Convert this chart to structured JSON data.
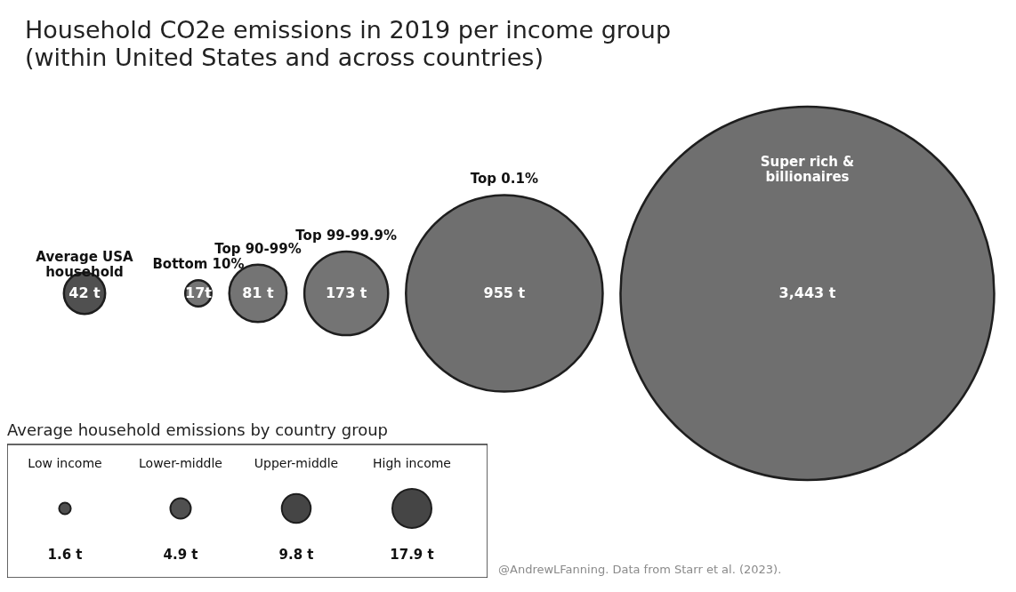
{
  "chart_data": [
    {
      "type": "other",
      "title": "Household CO2e emissions in 2019 per income group",
      "subtitle": "(within United States and across countries)",
      "categories": [
        "Average USA household",
        "Bottom 10%",
        "Top 90-99%",
        "Top 99-99.9%",
        "Top 0.1%",
        "Super rich & billionaires"
      ],
      "values": [
        42,
        17,
        81,
        173,
        955,
        3443
      ],
      "value_labels": [
        "42 t",
        "17t",
        "81 t",
        "173 t",
        "955 t",
        "3,443 t"
      ],
      "colors": [
        "#4a4a4a",
        "#707070",
        "#707070",
        "#707070",
        "#6a6a6a",
        "#6a6a6a"
      ],
      "annotations": [
        "@AndrewLFanning. Data from Starr et al. (2023)."
      ]
    },
    {
      "type": "other",
      "title": "Average household emissions by country group",
      "categories": [
        "Low income",
        "Lower-middle",
        "Upper-middle",
        "High income"
      ],
      "values": [
        1.6,
        4.9,
        9.8,
        17.9
      ],
      "value_labels": [
        "1.6 t",
        "4.9 t",
        "9.8 t",
        "17.9 t"
      ],
      "colors": [
        "#505050",
        "#505050",
        "#454545",
        "#454545"
      ]
    }
  ]
}
